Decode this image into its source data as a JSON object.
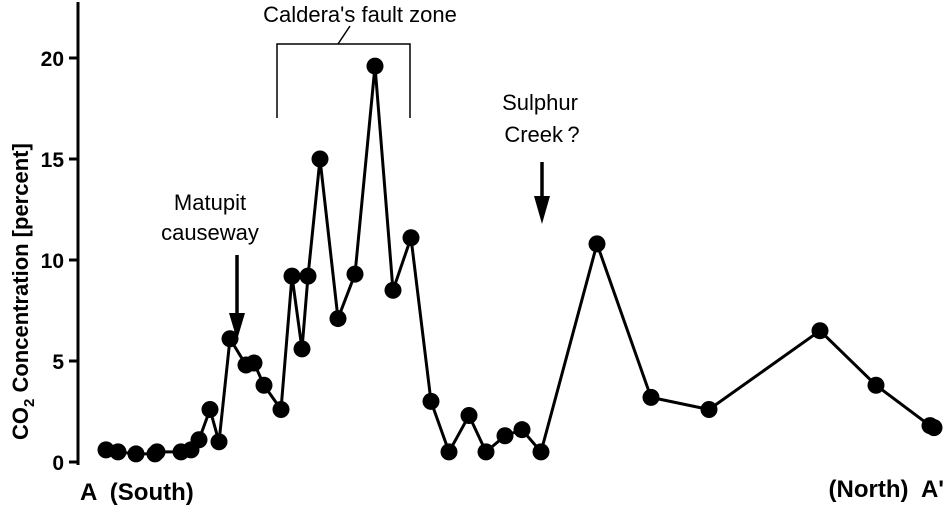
{
  "chart_data": {
    "type": "line",
    "ylabel": {
      "pre": "CO",
      "sub": "2",
      "post": " Concentration [percent]"
    },
    "ylim": [
      0,
      22
    ],
    "yticks": [
      0,
      5,
      10,
      15,
      20
    ],
    "x_start_label": "A  (South)",
    "x_end_label": "(North)  A'",
    "grid": false,
    "legend": "none",
    "marker_color": "#000000",
    "line_color": "#000000",
    "series": [
      {
        "values": [
          0.6,
          0.5,
          0.4,
          0.4,
          0.5,
          0.5,
          0.6,
          1.1,
          2.6,
          1.0,
          6.1,
          4.8,
          4.9,
          3.8,
          2.6,
          9.2,
          5.6,
          9.2,
          15.0,
          7.1,
          9.3,
          19.6,
          8.5,
          11.1,
          3.0,
          0.5,
          2.3,
          0.5,
          1.3,
          1.6,
          0.5,
          10.8,
          3.2,
          2.6,
          6.5,
          3.8,
          1.8,
          1.7
        ]
      }
    ],
    "annotations": [
      {
        "id": "matupit",
        "lines": [
          "Matupit",
          "causeway"
        ],
        "point_index": 11
      },
      {
        "id": "sulphur",
        "lines": [
          "Sulphur",
          "Creek ?"
        ],
        "point_index": 31
      },
      {
        "id": "fault",
        "lines": [
          "Caldera's fault zone"
        ],
        "from_index": 15,
        "to_index": 24
      }
    ]
  }
}
